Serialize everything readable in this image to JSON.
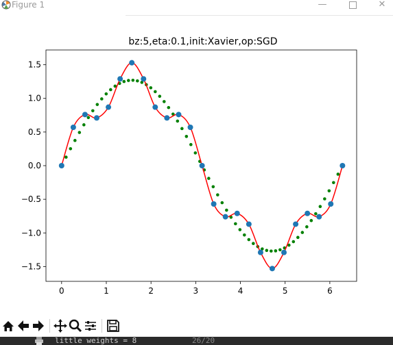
{
  "window": {
    "title": "Figure 1"
  },
  "chart_data": {
    "type": "line",
    "title": "bz:5,eta:0.1,init:Xavier,op:SGD",
    "xlabel": "",
    "ylabel": "",
    "xlim": [
      -0.35,
      6.6
    ],
    "ylim": [
      -1.72,
      1.72
    ],
    "x_ticks": [
      0,
      1,
      2,
      3,
      4,
      5,
      6
    ],
    "y_ticks": [
      1.5,
      1.0,
      0.5,
      0.0,
      -0.5,
      -1.0,
      -1.5
    ],
    "x_tick_labels": [
      "0",
      "1",
      "2",
      "3",
      "4",
      "5",
      "6"
    ],
    "y_tick_labels": [
      "1.5",
      "1.0",
      "0.5",
      "0.0",
      "−0.5",
      "−1.0",
      "−1.5"
    ],
    "series": [
      {
        "kind": "points",
        "color": "#1f77b4",
        "x": [
          0.0,
          0.262,
          0.524,
          0.785,
          1.047,
          1.309,
          1.571,
          1.833,
          2.094,
          2.356,
          2.618,
          2.88,
          3.142,
          3.403,
          3.665,
          3.927,
          4.189,
          4.451,
          4.712,
          4.974,
          5.236,
          5.498,
          5.76,
          6.021,
          6.283
        ],
        "y": [
          0.0,
          0.57,
          0.76,
          0.71,
          0.87,
          1.29,
          1.53,
          1.29,
          0.87,
          0.71,
          0.76,
          0.57,
          0.0,
          -0.57,
          -0.76,
          -0.71,
          -0.87,
          -1.29,
          -1.53,
          -1.29,
          -0.87,
          -0.71,
          -0.76,
          -0.57,
          0.0
        ]
      },
      {
        "kind": "curve",
        "color": "#ff0000",
        "x": [
          0.0,
          0.262,
          0.524,
          0.785,
          1.047,
          1.309,
          1.571,
          1.833,
          2.094,
          2.356,
          2.618,
          2.88,
          3.142,
          3.403,
          3.665,
          3.927,
          4.189,
          4.451,
          4.712,
          4.974,
          5.236,
          5.498,
          5.76,
          6.021,
          6.283
        ],
        "y": [
          0.0,
          0.57,
          0.76,
          0.71,
          0.87,
          1.29,
          1.53,
          1.29,
          0.87,
          0.71,
          0.76,
          0.57,
          0.0,
          -0.57,
          -0.76,
          -0.71,
          -0.87,
          -1.29,
          -1.53,
          -1.29,
          -0.87,
          -0.71,
          -0.76,
          -0.57,
          0.0
        ]
      },
      {
        "kind": "dots",
        "color": "#008000",
        "function": "1.27*sin(x)",
        "x_range": [
          0,
          6.283
        ],
        "count": 64
      }
    ],
    "grid": false
  },
  "toolbar": {
    "buttons": [
      "home-icon",
      "back-icon",
      "forward-icon",
      "pan-icon",
      "zoom-icon",
      "configure-subplots-icon",
      "save-icon"
    ]
  },
  "console": {
    "line": "little weights = 8",
    "progress": "26/20"
  }
}
